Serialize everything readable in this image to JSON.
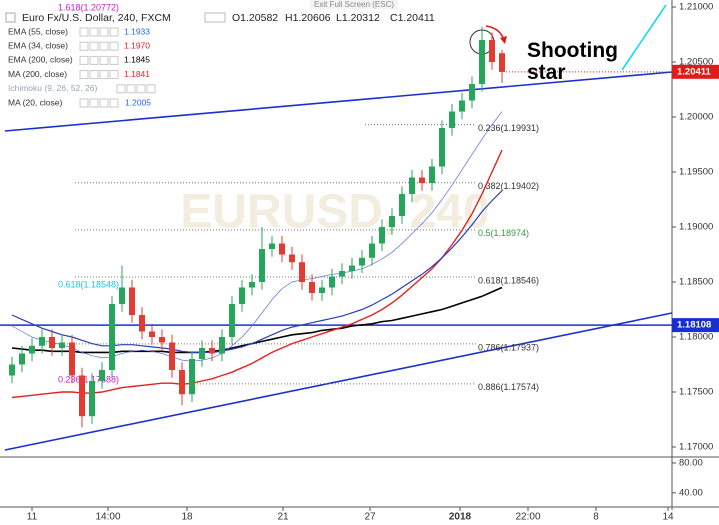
{
  "chart_data": {
    "type": "candlestick",
    "title": "Euro Fx/U.S. Dollar, 240, FXCM",
    "ohlc_labels": [
      "O1.20582",
      "H1.20606",
      "L1.20312",
      "C1.20411"
    ],
    "watermark": "EURUSD, 240",
    "exit_button": "Exit Full Screen (ESC)",
    "annotation": "Shooting star",
    "up_color": "#26a65b",
    "down_color": "#e03c31",
    "legend": [
      {
        "name": "EMA (55, close)",
        "value": "1.1933",
        "color": "#2962ff"
      },
      {
        "name": "EMA (34, close)",
        "value": "1.1970",
        "color": "#e52020"
      },
      {
        "name": "EMA (200, close)",
        "value": "1.1845",
        "color": "#000000"
      },
      {
        "name": "MA (200, close)",
        "value": "1.1841",
        "color": "#e52020"
      },
      {
        "name": "Ichimoku (9, 26, 52, 26)",
        "color": "#9aa3b5"
      },
      {
        "name": "MA (20, close)",
        "value": "1.2005",
        "color": "#2962ff"
      }
    ],
    "ylim": [
      1.16909,
      1.21064
    ],
    "yticks": [
      {
        "value": 1.21,
        "label": "1.21000"
      },
      {
        "value": 1.205,
        "label": "1.20500"
      },
      {
        "value": 1.2,
        "label": "1.20000"
      },
      {
        "value": 1.195,
        "label": "1.19500"
      },
      {
        "value": 1.19,
        "label": "1.19000"
      },
      {
        "value": 1.185,
        "label": "1.18500"
      },
      {
        "value": 1.18,
        "label": "1.18000"
      },
      {
        "value": 1.175,
        "label": "1.17500"
      },
      {
        "value": 1.17,
        "label": "1.17000"
      }
    ],
    "x_labels": [
      "11",
      "14:00",
      "18",
      "21",
      "27",
      "2018",
      "22:00",
      "8",
      "14"
    ],
    "open": [
      1.1765,
      1.1775,
      1.1785,
      1.1792,
      1.18,
      1.179,
      1.1795,
      1.1765,
      1.1728,
      1.176,
      1.177,
      1.183,
      1.1845,
      1.182,
      1.1805,
      1.18,
      1.1795,
      1.177,
      1.1748,
      1.178,
      1.179,
      1.1785,
      1.18,
      1.183,
      1.1845,
      1.185,
      1.188,
      1.1885,
      1.1875,
      1.1868,
      1.185,
      1.184,
      1.1845,
      1.1855,
      1.186,
      1.1865,
      1.1872,
      1.1885,
      1.19,
      1.191,
      1.193,
      1.1945,
      1.194,
      1.1955,
      1.199,
      1.2005,
      1.2015,
      1.203,
      1.207,
      1.2058
    ],
    "high": [
      1.1782,
      1.1792,
      1.1799,
      1.1807,
      1.1807,
      1.1802,
      1.1802,
      1.1772,
      1.1767,
      1.1777,
      1.1837,
      1.1865,
      1.1852,
      1.1827,
      1.1812,
      1.1807,
      1.1802,
      1.1777,
      1.1787,
      1.1797,
      1.1797,
      1.1807,
      1.1837,
      1.1852,
      1.1857,
      1.19,
      1.1892,
      1.1892,
      1.1882,
      1.1875,
      1.1857,
      1.1852,
      1.1862,
      1.1867,
      1.1872,
      1.1879,
      1.1892,
      1.1907,
      1.1917,
      1.1937,
      1.1952,
      1.1952,
      1.1962,
      1.1997,
      1.2012,
      1.2022,
      1.2037,
      1.2082,
      1.2077,
      1.2061
    ],
    "low": [
      1.1758,
      1.1768,
      1.1778,
      1.1785,
      1.1783,
      1.1783,
      1.1758,
      1.1718,
      1.1721,
      1.1753,
      1.1763,
      1.1823,
      1.1813,
      1.1798,
      1.1793,
      1.1788,
      1.1763,
      1.1738,
      1.1741,
      1.1773,
      1.1778,
      1.1778,
      1.1793,
      1.1823,
      1.1838,
      1.1843,
      1.1873,
      1.1868,
      1.1861,
      1.1843,
      1.1833,
      1.1833,
      1.1838,
      1.1848,
      1.1853,
      1.1858,
      1.1865,
      1.1878,
      1.1893,
      1.1903,
      1.1923,
      1.1933,
      1.1933,
      1.1948,
      1.1983,
      1.1998,
      1.2008,
      1.2023,
      1.2043,
      1.2031
    ],
    "close": [
      1.1775,
      1.1785,
      1.1792,
      1.18,
      1.179,
      1.1795,
      1.1765,
      1.1728,
      1.176,
      1.177,
      1.183,
      1.1845,
      1.182,
      1.1805,
      1.18,
      1.1795,
      1.177,
      1.1748,
      1.178,
      1.179,
      1.1785,
      1.18,
      1.183,
      1.1845,
      1.185,
      1.188,
      1.1885,
      1.1875,
      1.1868,
      1.185,
      1.184,
      1.1845,
      1.1855,
      1.186,
      1.1865,
      1.1872,
      1.1885,
      1.19,
      1.191,
      1.193,
      1.1945,
      1.194,
      1.1955,
      1.199,
      1.2005,
      1.2015,
      1.203,
      1.207,
      1.205,
      1.2041
    ],
    "lines": [
      {
        "color": "#000000",
        "width": 1.6,
        "values": [
          1.179,
          1.1789,
          1.1788,
          1.1788,
          1.1787,
          1.1787,
          1.1787,
          1.1786,
          1.1786,
          1.1786,
          1.1786,
          1.1787,
          1.1787,
          1.1787,
          1.1787,
          1.1787,
          1.1786,
          1.1786,
          1.1786,
          1.1786,
          1.1787,
          1.1788,
          1.179,
          1.1792,
          1.1794,
          1.1796,
          1.1798,
          1.18,
          1.1802,
          1.1803,
          1.1804,
          1.1806,
          1.1807,
          1.1808,
          1.181,
          1.1811,
          1.1812,
          1.1814,
          1.1815,
          1.1817,
          1.1819,
          1.1821,
          1.1823,
          1.1825,
          1.1828,
          1.1831,
          1.1834,
          1.1837,
          1.1841,
          1.1845
        ]
      },
      {
        "color": "#e52020",
        "width": 1.4,
        "values": [
          1.1745,
          1.1746,
          1.1747,
          1.1748,
          1.1749,
          1.175,
          1.175,
          1.1749,
          1.1749,
          1.175,
          1.1752,
          1.1754,
          1.1755,
          1.1756,
          1.1757,
          1.1758,
          1.1758,
          1.1757,
          1.1758,
          1.176,
          1.1762,
          1.1765,
          1.1768,
          1.1772,
          1.1776,
          1.1781,
          1.1786,
          1.179,
          1.1794,
          1.1797,
          1.18,
          1.1803,
          1.1806,
          1.1809,
          1.1812,
          1.1816,
          1.182,
          1.1825,
          1.1831,
          1.1838,
          1.1846,
          1.1854,
          1.1862,
          1.1872,
          1.1884,
          1.1897,
          1.1912,
          1.193,
          1.195,
          1.197
        ]
      },
      {
        "color": "#2a3fb8",
        "width": 1.2,
        "values": [
          1.182,
          1.1816,
          1.1812,
          1.1808,
          1.1805,
          1.1802,
          1.18,
          1.1797,
          1.1794,
          1.1792,
          1.1792,
          1.1793,
          1.1793,
          1.1792,
          1.1791,
          1.179,
          1.1789,
          1.1787,
          1.1786,
          1.1786,
          1.1786,
          1.1787,
          1.1789,
          1.1791,
          1.1794,
          1.1798,
          1.1802,
          1.1806,
          1.1809,
          1.1811,
          1.1813,
          1.1815,
          1.1817,
          1.1819,
          1.1822,
          1.1825,
          1.1829,
          1.1834,
          1.1839,
          1.1845,
          1.1851,
          1.1857,
          1.1864,
          1.1872,
          1.1881,
          1.1891,
          1.1902,
          1.1914,
          1.1924,
          1.1933
        ]
      },
      {
        "color": "#5470d8",
        "width": 0.7,
        "values": [
          1.181,
          1.1805,
          1.18,
          1.1797,
          1.1795,
          1.1793,
          1.179,
          1.1786,
          1.1783,
          1.1781,
          1.1782,
          1.1785,
          1.1787,
          1.1788,
          1.1787,
          1.1785,
          1.1782,
          1.1779,
          1.1778,
          1.1779,
          1.1781,
          1.1785,
          1.1792,
          1.18,
          1.181,
          1.1822,
          1.1834,
          1.1844,
          1.185,
          1.1852,
          1.1853,
          1.1855,
          1.1857,
          1.1858,
          1.186,
          1.1862,
          1.1866,
          1.1871,
          1.1877,
          1.1885,
          1.1894,
          1.1903,
          1.1913,
          1.1925,
          1.1938,
          1.1952,
          1.1966,
          1.198,
          1.1993,
          1.2005
        ]
      }
    ],
    "fib_levels": [
      {
        "label": "0.236(1.19931)",
        "value": 1.19931,
        "color": "#333333"
      },
      {
        "label": "0.382(1.19402)",
        "value": 1.19402,
        "color": "#333333"
      },
      {
        "label": "0.5(1.18974)",
        "value": 1.18974,
        "color": "#3a9a3a"
      },
      {
        "label": "0.618(1.18546)",
        "value": 1.18546,
        "color": "#333333"
      },
      {
        "label": "0.786(1.17937)",
        "value": 1.17937,
        "color": "#333333"
      },
      {
        "label": "0.886(1.17574)",
        "value": 1.17574,
        "color": "#333333"
      }
    ],
    "old_fib_labels": [
      {
        "label": "1.618(1.20772)",
        "color": "#d01ad0"
      },
      {
        "label": "0.618(1.18548)",
        "color": "#18c8e8"
      },
      {
        "label": "0.236(1.17688)",
        "color": "#d01ad0"
      }
    ],
    "hline": {
      "value": 1.18108,
      "label": "1.18108",
      "color": "#1a2fd0"
    },
    "last_price": {
      "value": 1.20411,
      "label": "1.20411",
      "color": "#e01b1b"
    },
    "lower_ylim": [
      21,
      88
    ],
    "lower_yticks": [
      {
        "value": 80,
        "label": "80.00"
      },
      {
        "value": 40,
        "label": "40.00"
      }
    ]
  }
}
